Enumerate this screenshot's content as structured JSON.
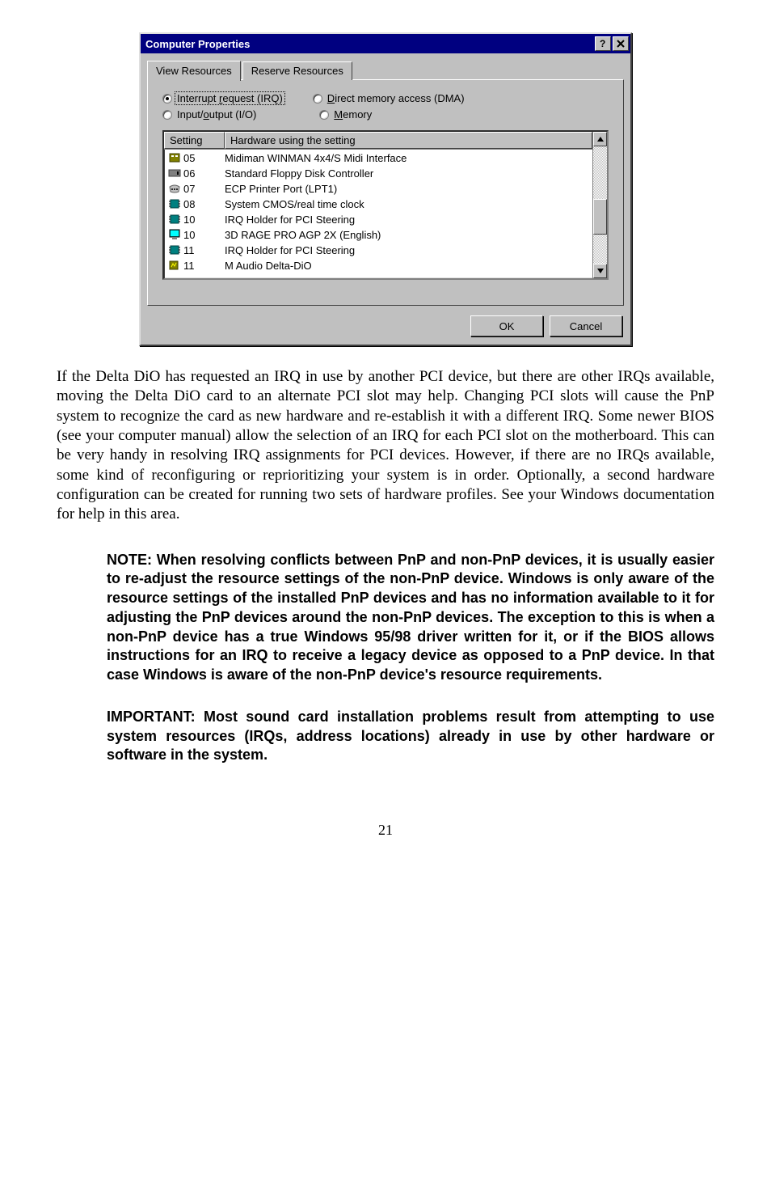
{
  "dialog": {
    "title": "Computer Properties",
    "tabs": {
      "view": "View Resources",
      "reserve": "Reserve Resources"
    },
    "radios": {
      "irq_pre": "Interrupt ",
      "irq_acc": "r",
      "irq_post": "equest (IRQ)",
      "dma_acc": "D",
      "dma_post": "irect memory access (DMA)",
      "io_pre": "Input/",
      "io_acc": "o",
      "io_post": "utput (I/O)",
      "mem_acc": "M",
      "mem_post": "emory"
    },
    "columns": {
      "setting": "Setting",
      "hw": "Hardware using the setting"
    },
    "rows": [
      {
        "icon": "midi",
        "num": "05",
        "desc": "Midiman WINMAN 4x4/S Midi Interface"
      },
      {
        "icon": "floppy",
        "num": "06",
        "desc": "Standard Floppy Disk Controller"
      },
      {
        "icon": "port",
        "num": "07",
        "desc": "ECP Printer Port (LPT1)"
      },
      {
        "icon": "chip",
        "num": "08",
        "desc": "System CMOS/real time clock"
      },
      {
        "icon": "chip",
        "num": "10",
        "desc": "IRQ Holder for PCI Steering"
      },
      {
        "icon": "display",
        "num": "10",
        "desc": "3D RAGE PRO AGP 2X (English)"
      },
      {
        "icon": "chip",
        "num": "11",
        "desc": "IRQ Holder for PCI Steering"
      },
      {
        "icon": "audio",
        "num": "11",
        "desc": "M Audio Delta-DiO"
      }
    ],
    "buttons": {
      "ok": "OK",
      "cancel": "Cancel"
    },
    "scrollbar": {
      "thumb_top_pct": 45,
      "thumb_height_pct": 30
    }
  },
  "paragraph": "If the Delta DiO has requested an IRQ in use by another PCI device, but there are other IRQs available, moving the Delta DiO card to an alternate PCI slot may help.  Changing PCI slots will cause the PnP system to recognize the card as new hardware and re-establish it with a different IRQ.  Some newer BIOS (see your computer manual) allow the selection of an IRQ for each PCI slot on the motherboard.  This can be very handy in resolving IRQ assignments for PCI devices.  However, if there are no IRQs available, some kind of reconfiguring or reprioritizing your system is in order.  Optionally, a second hardware configuration can be created for running two sets of hardware profiles.  See your Windows documentation for help in this area.",
  "note": "NOTE:  When resolving conflicts between PnP and non-PnP devices, it is usually easier to re-adjust the resource settings of the non-PnP device.  Windows is only aware of the resource settings of the installed PnP devices and has no information available to it for adjusting the PnP devices around the non-PnP devices.  The exception to this is when a non-PnP device has a true Windows 95/98 driver written for it, or if the BIOS allows instructions for an IRQ to receive a legacy device as opposed to a PnP device.  In that case Windows is aware of the non-PnP device's resource requirements.",
  "important": "IMPORTANT:  Most sound card installation problems result from attempting to use system resources (IRQs, address locations) already in use by other hardware or software in the system.",
  "page_number": "21",
  "icons_svg": {
    "midi": "<svg width='16' height='16'><rect x='2' y='3' width='12' height='10' fill='#808000' stroke='#404000'/><rect x='4' y='5' width='3' height='2' fill='#fff'/><rect x='9' y='5' width='3' height='2' fill='#fff'/></svg>",
    "floppy": "<svg width='16' height='16'><rect x='1' y='4' width='14' height='8' fill='#808080' stroke='#404040'/><rect x='11' y='6' width='2' height='4' fill='#000'/></svg>",
    "port": "<svg width='16' height='16'><path d='M2 6 Q8 2 14 6 L13 12 Q8 14 3 12 Z' fill='#c0c0c0' stroke='#606060'/><circle cx='5' cy='9' r='1' fill='#000'/><circle cx='8' cy='9' r='1' fill='#000'/><circle cx='11' cy='9' r='1' fill='#000'/></svg>",
    "chip": "<svg width='16' height='16'><rect x='3' y='3' width='10' height='10' fill='#008080' stroke='#004040'/><line x1='1' y1='5' x2='3' y2='5' stroke='#000'/><line x1='1' y1='8' x2='3' y2='8' stroke='#000'/><line x1='1' y1='11' x2='3' y2='11' stroke='#000'/><line x1='13' y1='5' x2='15' y2='5' stroke='#000'/><line x1='13' y1='8' x2='15' y2='8' stroke='#000'/><line x1='13' y1='11' x2='15' y2='11' stroke='#000'/></svg>",
    "display": "<svg width='16' height='16'><rect x='2' y='2' width='12' height='9' fill='#008080' stroke='#000'/><rect x='3' y='3' width='10' height='7' fill='#00ffff'/><rect x='5' y='12' width='6' height='2' fill='#808080'/></svg>",
    "audio": "<svg width='16' height='16'><rect x='2' y='3' width='10' height='10' fill='#808000' stroke='#404000'/><path d='M4 10 L6 6 L8 9 L10 5' fill='none' stroke='#ffff00'/></svg>"
  }
}
